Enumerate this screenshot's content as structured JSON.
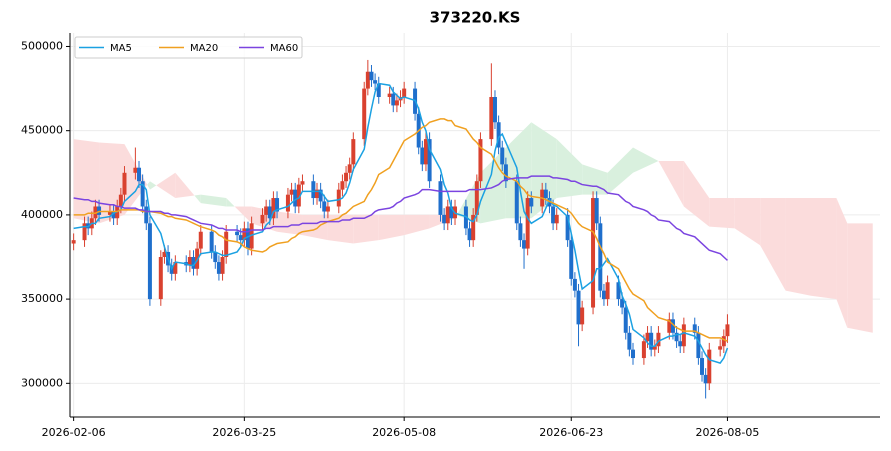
{
  "chart_data": {
    "type": "candlestick",
    "title": "373220.KS",
    "x": [
      "2026-02-06",
      "2026-02-09",
      "2026-02-10",
      "2026-02-11",
      "2026-02-12",
      "2026-02-13",
      "2026-02-16",
      "2026-02-17",
      "2026-02-18",
      "2026-02-19",
      "2026-02-20",
      "2026-02-23",
      "2026-02-24",
      "2026-02-25",
      "2026-02-26",
      "2026-02-27",
      "2026-03-02",
      "2026-03-03",
      "2026-03-04",
      "2026-03-05",
      "2026-03-06",
      "2026-03-09",
      "2026-03-10",
      "2026-03-11",
      "2026-03-12",
      "2026-03-13",
      "2026-03-16",
      "2026-03-17",
      "2026-03-18",
      "2026-03-19",
      "2026-03-20",
      "2026-03-23",
      "2026-03-24",
      "2026-03-25",
      "2026-03-26",
      "2026-03-27",
      "2026-03-30",
      "2026-03-31",
      "2026-04-01",
      "2026-04-02",
      "2026-04-03",
      "2026-04-06",
      "2026-04-07",
      "2026-04-08",
      "2026-04-09",
      "2026-04-10",
      "2026-04-13",
      "2026-04-14",
      "2026-04-15",
      "2026-04-16",
      "2026-04-17",
      "2026-04-20",
      "2026-04-21",
      "2026-04-22",
      "2026-04-23",
      "2026-04-24",
      "2026-04-27",
      "2026-04-28",
      "2026-04-29",
      "2026-04-30",
      "2026-05-01",
      "2026-05-04",
      "2026-05-05",
      "2026-05-06",
      "2026-05-07",
      "2026-05-08",
      "2026-05-11",
      "2026-05-12",
      "2026-05-13",
      "2026-05-14",
      "2026-05-15",
      "2026-05-18",
      "2026-05-19",
      "2026-05-20",
      "2026-05-21",
      "2026-05-22",
      "2026-05-25",
      "2026-05-26",
      "2026-05-27",
      "2026-05-28",
      "2026-05-29",
      "2026-06-01",
      "2026-06-02",
      "2026-06-03",
      "2026-06-04",
      "2026-06-05",
      "2026-06-08",
      "2026-06-09",
      "2026-06-10",
      "2026-06-11",
      "2026-06-12",
      "2026-06-15",
      "2026-06-16",
      "2026-06-17",
      "2026-06-18",
      "2026-06-19",
      "2026-06-22",
      "2026-06-23",
      "2026-06-24",
      "2026-06-25",
      "2026-06-26",
      "2026-06-29",
      "2026-06-30",
      "2026-07-01",
      "2026-07-02",
      "2026-07-03",
      "2026-07-06",
      "2026-07-07",
      "2026-07-08",
      "2026-07-09",
      "2026-07-10",
      "2026-07-13",
      "2026-07-14",
      "2026-07-15",
      "2026-07-16",
      "2026-07-17",
      "2026-07-20",
      "2026-07-21",
      "2026-07-22",
      "2026-07-23",
      "2026-07-24",
      "2026-07-27",
      "2026-07-28",
      "2026-07-29",
      "2026-07-30",
      "2026-07-31",
      "2026-08-03",
      "2026-08-04",
      "2026-08-05"
    ],
    "open": [
      383000,
      385000,
      395000,
      392000,
      398000,
      405000,
      400000,
      402000,
      398000,
      405000,
      412000,
      425000,
      428000,
      420000,
      405000,
      395000,
      350000,
      375000,
      378000,
      370000,
      365000,
      372000,
      370000,
      375000,
      368000,
      380000,
      390000,
      378000,
      372000,
      365000,
      375000,
      390000,
      388000,
      385000,
      392000,
      380000,
      395000,
      400000,
      405000,
      398000,
      410000,
      402000,
      412000,
      415000,
      405000,
      418000,
      420000,
      410000,
      415000,
      408000,
      402000,
      405000,
      415000,
      420000,
      425000,
      430000,
      445000,
      475000,
      485000,
      480000,
      478000,
      470000,
      472000,
      465000,
      468000,
      470000,
      475000,
      460000,
      440000,
      430000,
      445000,
      420000,
      400000,
      395000,
      405000,
      398000,
      405000,
      392000,
      385000,
      400000,
      420000,
      445000,
      470000,
      455000,
      440000,
      430000,
      420000,
      395000,
      385000,
      380000,
      410000,
      405000,
      415000,
      410000,
      405000,
      395000,
      400000,
      385000,
      362000,
      355000,
      335000,
      345000,
      410000,
      395000,
      355000,
      350000,
      360000,
      350000,
      345000,
      330000,
      320000,
      315000,
      325000,
      330000,
      320000,
      322000,
      330000,
      338000,
      330000,
      325000,
      322000,
      335000,
      330000,
      315000,
      305000,
      300000,
      320000,
      322000,
      328000
    ],
    "high": [
      389000,
      399000,
      399000,
      402000,
      409000,
      409000,
      406000,
      406000,
      409000,
      416000,
      429000,
      440000,
      432000,
      424000,
      409000,
      399000,
      379000,
      382000,
      382000,
      374000,
      376000,
      376000,
      379000,
      379000,
      384000,
      394000,
      394000,
      382000,
      376000,
      379000,
      394000,
      394000,
      392000,
      396000,
      396000,
      399000,
      404000,
      409000,
      409000,
      414000,
      414000,
      416000,
      419000,
      419000,
      422000,
      424000,
      424000,
      419000,
      419000,
      412000,
      409000,
      419000,
      424000,
      429000,
      434000,
      449000,
      479000,
      492000,
      489000,
      484000,
      482000,
      476000,
      476000,
      472000,
      474000,
      479000,
      479000,
      464000,
      444000,
      449000,
      449000,
      424000,
      404000,
      409000,
      409000,
      409000,
      409000,
      396000,
      404000,
      424000,
      449000,
      490000,
      474000,
      459000,
      444000,
      434000,
      424000,
      399000,
      389000,
      414000,
      414000,
      419000,
      419000,
      414000,
      409000,
      404000,
      404000,
      389000,
      366000,
      359000,
      349000,
      414000,
      414000,
      399000,
      359000,
      364000,
      364000,
      354000,
      349000,
      334000,
      324000,
      329000,
      334000,
      334000,
      326000,
      334000,
      342000,
      342000,
      334000,
      329000,
      339000,
      339000,
      334000,
      319000,
      309000,
      324000,
      326000,
      332000,
      341000
    ],
    "low": [
      379000,
      381000,
      388000,
      388000,
      394000,
      396000,
      396000,
      394000,
      394000,
      401000,
      408000,
      421000,
      416000,
      401000,
      391000,
      346000,
      346000,
      371000,
      366000,
      361000,
      361000,
      366000,
      366000,
      364000,
      364000,
      376000,
      374000,
      368000,
      361000,
      361000,
      371000,
      384000,
      381000,
      381000,
      376000,
      376000,
      391000,
      396000,
      394000,
      394000,
      398000,
      398000,
      408000,
      401000,
      401000,
      414000,
      406000,
      406000,
      404000,
      398000,
      398000,
      401000,
      411000,
      416000,
      421000,
      426000,
      441000,
      471000,
      476000,
      474000,
      466000,
      466000,
      461000,
      461000,
      464000,
      466000,
      456000,
      436000,
      426000,
      426000,
      416000,
      396000,
      391000,
      391000,
      394000,
      394000,
      388000,
      381000,
      381000,
      396000,
      416000,
      441000,
      451000,
      436000,
      426000,
      416000,
      391000,
      381000,
      368000,
      376000,
      401000,
      401000,
      406000,
      401000,
      391000,
      391000,
      381000,
      358000,
      351000,
      322000,
      331000,
      341000,
      391000,
      351000,
      346000,
      346000,
      346000,
      341000,
      326000,
      316000,
      311000,
      311000,
      321000,
      316000,
      316000,
      318000,
      326000,
      326000,
      321000,
      318000,
      318000,
      326000,
      311000,
      301000,
      291000,
      296000,
      316000,
      318000,
      324000
    ],
    "close": [
      385000,
      395000,
      392000,
      398000,
      405000,
      400000,
      402000,
      398000,
      405000,
      412000,
      425000,
      428000,
      420000,
      405000,
      395000,
      350000,
      375000,
      378000,
      370000,
      365000,
      372000,
      370000,
      375000,
      368000,
      380000,
      390000,
      378000,
      372000,
      365000,
      375000,
      390000,
      388000,
      385000,
      392000,
      380000,
      395000,
      400000,
      405000,
      398000,
      410000,
      402000,
      412000,
      415000,
      405000,
      418000,
      420000,
      410000,
      415000,
      408000,
      402000,
      405000,
      415000,
      420000,
      425000,
      430000,
      445000,
      475000,
      485000,
      480000,
      478000,
      470000,
      472000,
      465000,
      468000,
      470000,
      475000,
      460000,
      440000,
      430000,
      445000,
      420000,
      400000,
      395000,
      405000,
      398000,
      405000,
      392000,
      385000,
      400000,
      420000,
      445000,
      470000,
      455000,
      440000,
      430000,
      420000,
      395000,
      385000,
      380000,
      410000,
      405000,
      415000,
      410000,
      405000,
      395000,
      400000,
      385000,
      362000,
      355000,
      335000,
      345000,
      410000,
      395000,
      355000,
      350000,
      360000,
      350000,
      345000,
      330000,
      320000,
      315000,
      325000,
      330000,
      320000,
      322000,
      330000,
      338000,
      330000,
      325000,
      322000,
      335000,
      330000,
      315000,
      305000,
      300000,
      320000,
      322000,
      328000,
      335000
    ],
    "up_color": "#d9412f",
    "down_color": "#1f6fcc",
    "series": [
      {
        "name": "MA5",
        "color": "#1ba1e2",
        "values": [
          392000,
          393000,
          393000,
          395000,
          395000,
          398000,
          399000,
          401000,
          402000,
          403000,
          408000,
          414000,
          418000,
          418000,
          415000,
          400000,
          389000,
          381000,
          374000,
          368000,
          372000,
          371000,
          370000,
          370000,
          373000,
          377000,
          378000,
          378000,
          377000,
          376000,
          376000,
          378000,
          381000,
          386000,
          387000,
          388000,
          390000,
          394000,
          396000,
          402000,
          403000,
          405000,
          407000,
          409000,
          410000,
          414000,
          414000,
          414000,
          414000,
          411000,
          408000,
          409000,
          410000,
          413000,
          419000,
          427000,
          439000,
          452000,
          463000,
          473000,
          478000,
          477000,
          473000,
          471000,
          469000,
          470000,
          468000,
          463000,
          455000,
          450000,
          439000,
          427000,
          418000,
          413000,
          404000,
          401000,
          399000,
          397000,
          396000,
          400000,
          408000,
          424000,
          438000,
          446000,
          448000,
          443000,
          428000,
          414000,
          402000,
          398000,
          395000,
          399000,
          404000,
          409000,
          406000,
          405000,
          399000,
          389000,
          379000,
          367000,
          356000,
          361000,
          368000,
          368000,
          371000,
          374000,
          362000,
          352000,
          347000,
          341000,
          332000,
          327000,
          324000,
          322000,
          322000,
          325000,
          328000,
          328000,
          329000,
          329000,
          330000,
          328000,
          325000,
          321000,
          317000,
          314000,
          312000,
          315000,
          321000
        ]
      },
      {
        "name": "MA20",
        "color": "#f0a020",
        "values": [
          400000,
          400000,
          401000,
          401000,
          401000,
          402000,
          402000,
          402000,
          402000,
          403000,
          403000,
          403000,
          403000,
          402000,
          402000,
          402000,
          401000,
          400000,
          399000,
          399000,
          398000,
          397000,
          396000,
          395000,
          394000,
          393000,
          391000,
          390000,
          388000,
          387000,
          385000,
          384000,
          383000,
          381000,
          380000,
          379000,
          378000,
          379000,
          381000,
          382000,
          383000,
          384000,
          386000,
          387000,
          389000,
          390000,
          391000,
          392000,
          394000,
          395000,
          396000,
          398000,
          400000,
          401000,
          403000,
          405000,
          408000,
          412000,
          415000,
          419000,
          424000,
          428000,
          432000,
          436000,
          440000,
          444000,
          448000,
          450000,
          452000,
          453000,
          455000,
          457000,
          457000,
          456000,
          456000,
          453000,
          451000,
          448000,
          445000,
          443000,
          440000,
          436000,
          432000,
          428000,
          425000,
          423000,
          420000,
          417000,
          415000,
          412000,
          411000,
          410000,
          409000,
          408000,
          407000,
          406000,
          403000,
          401000,
          398000,
          395000,
          393000,
          390000,
          386000,
          381000,
          377000,
          372000,
          368000,
          364000,
          360000,
          356000,
          353000,
          349000,
          345000,
          343000,
          341000,
          339000,
          337000,
          335000,
          333000,
          332000,
          331000,
          331000,
          330000,
          329000,
          328000,
          327000,
          327000,
          326000,
          325000
        ]
      },
      {
        "name": "MA60",
        "color": "#7b44e0",
        "values": [
          410000,
          409000,
          409000,
          408000,
          408000,
          407000,
          406000,
          406000,
          405000,
          405000,
          404000,
          404000,
          403000,
          403000,
          402000,
          402000,
          402000,
          401000,
          401000,
          400000,
          400000,
          399000,
          398000,
          397000,
          396000,
          395000,
          394000,
          393000,
          392000,
          392000,
          391000,
          391000,
          390000,
          390000,
          390000,
          391000,
          391000,
          392000,
          392000,
          393000,
          393000,
          393000,
          394000,
          394000,
          394000,
          395000,
          395000,
          395000,
          396000,
          396000,
          396000,
          396000,
          397000,
          397000,
          397000,
          398000,
          398000,
          399000,
          400000,
          402000,
          403000,
          404000,
          405000,
          407000,
          408000,
          410000,
          412000,
          413000,
          415000,
          415000,
          415000,
          414000,
          414000,
          414000,
          414000,
          414000,
          414000,
          415000,
          415000,
          415000,
          415000,
          416000,
          417000,
          418000,
          420000,
          421000,
          422000,
          422000,
          422000,
          422000,
          423000,
          423000,
          423000,
          423000,
          422000,
          422000,
          421000,
          420000,
          420000,
          419000,
          418000,
          417000,
          417000,
          416000,
          415000,
          413000,
          412000,
          410000,
          408000,
          407000,
          405000,
          403000,
          402000,
          400000,
          399000,
          397000,
          396000,
          394000,
          392000,
          391000,
          389000,
          387000,
          385000,
          383000,
          381000,
          379000,
          377000,
          375000,
          373000
        ]
      }
    ],
    "cloud": {
      "x": [
        "2026-02-06",
        "2026-02-13",
        "2026-02-20",
        "2026-02-27",
        "2026-03-06",
        "2026-03-13",
        "2026-03-20",
        "2026-03-27",
        "2026-04-03",
        "2026-04-10",
        "2026-04-17",
        "2026-04-24",
        "2026-05-01",
        "2026-05-08",
        "2026-05-15",
        "2026-05-22",
        "2026-05-29",
        "2026-06-05",
        "2026-06-12",
        "2026-06-19",
        "2026-06-26",
        "2026-07-03",
        "2026-07-10",
        "2026-07-17",
        "2026-07-24",
        "2026-07-31",
        "2026-08-07",
        "2026-08-14",
        "2026-08-21",
        "2026-08-28",
        "2026-09-04",
        "2026-09-07",
        "2026-09-14"
      ],
      "span_a": [
        398000,
        395000,
        400000,
        420000,
        410000,
        412000,
        410000,
        395000,
        390000,
        388000,
        385000,
        383000,
        385000,
        388000,
        392000,
        398000,
        425000,
        440000,
        455000,
        445000,
        430000,
        425000,
        440000,
        432000,
        405000,
        393000,
        392000,
        382000,
        355000,
        352000,
        350000,
        333000,
        330000
      ],
      "span_b": [
        445000,
        443000,
        442000,
        415000,
        425000,
        407000,
        405000,
        405000,
        402000,
        400000,
        400000,
        400000,
        400000,
        400000,
        400000,
        400000,
        395000,
        398000,
        398000,
        410000,
        412000,
        412000,
        425000,
        432000,
        432000,
        410000,
        410000,
        410000,
        410000,
        410000,
        410000,
        395000,
        395000
      ],
      "up_color": "#d9f0de",
      "down_color": "#fbdcdc"
    },
    "xlim": [
      "2026-02-05",
      "2026-09-16"
    ],
    "xticks": [
      "2026-02-06",
      "2026-03-25",
      "2026-05-08",
      "2026-06-23",
      "2026-08-05"
    ],
    "ylim": [
      280000,
      508000
    ],
    "yticks": [
      300000,
      350000,
      400000,
      450000,
      500000
    ],
    "grid": true,
    "legend": "upper left"
  }
}
